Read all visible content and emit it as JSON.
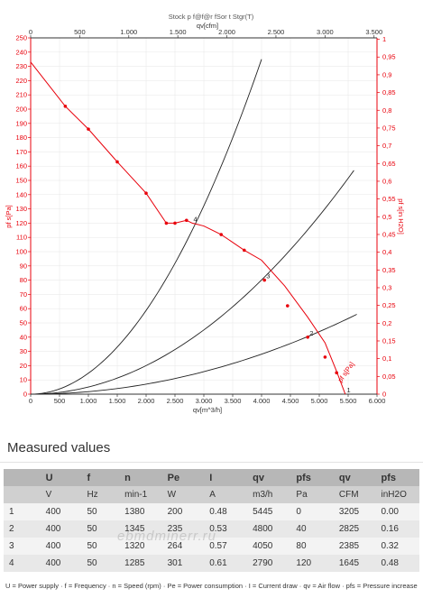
{
  "header_small": "Stock p f@f@r fSor t Stgr(T)",
  "chart_data": {
    "type": "line",
    "top_axis_label": "qv[cfm]",
    "bottom_axis_label": "qv[m^3/h]",
    "left_axis_label": "pf s[Pa]",
    "right_axis_label": "pf s[in H2O]",
    "xlim": [
      0,
      6000
    ],
    "ylim": [
      0,
      250
    ],
    "x_ticks": [
      0,
      500,
      1000,
      1500,
      2000,
      2500,
      3000,
      3500,
      4000,
      4500,
      5000,
      5500,
      6000
    ],
    "x_tick_labels": [
      "0",
      "500",
      "1.000",
      "1.500",
      "2.000",
      "2.500",
      "3.000",
      "3.500",
      "4.000",
      "4.500",
      "5.000",
      "5.500",
      "6.000"
    ],
    "top_ticks": [
      0,
      500,
      1000,
      1500,
      2000,
      2500,
      3000,
      3500
    ],
    "top_tick_labels": [
      "0",
      "500",
      "1.000",
      "1.500",
      "2.000",
      "2.500",
      "3.000",
      "3.500"
    ],
    "y_ticks": [
      0,
      10,
      20,
      30,
      40,
      50,
      60,
      70,
      80,
      90,
      100,
      110,
      120,
      130,
      140,
      150,
      160,
      170,
      180,
      190,
      200,
      210,
      220,
      230,
      240,
      250
    ],
    "right_ticks": [
      0,
      0.05,
      0.1,
      0.15,
      0.2,
      0.25,
      0.3,
      0.35,
      0.4,
      0.45,
      0.5,
      0.55,
      0.6,
      0.65,
      0.7,
      0.75,
      0.8,
      0.85,
      0.9,
      0.95,
      1
    ],
    "right_tick_labels": [
      "0",
      "0,05",
      "0,1",
      "0,15",
      "0,2",
      "0,25",
      "0,3",
      "0,35",
      "0,4",
      "0,45",
      "0,5",
      "0,55",
      "0,6",
      "0,65",
      "0,7",
      "0,75",
      "0,8",
      "0,85",
      "0,9",
      "0,95",
      "1"
    ],
    "fan_curve": {
      "color": "#e8000b",
      "points": [
        [
          0,
          233
        ],
        [
          600,
          202
        ],
        [
          1000,
          186
        ],
        [
          1500,
          163
        ],
        [
          2000,
          141
        ],
        [
          2350,
          120
        ],
        [
          2500,
          120
        ],
        [
          2700,
          122
        ],
        [
          2800,
          120
        ],
        [
          3000,
          118
        ],
        [
          3300,
          112
        ],
        [
          3700,
          101
        ],
        [
          4000,
          94
        ],
        [
          4400,
          76
        ],
        [
          4800,
          54
        ],
        [
          5100,
          36
        ],
        [
          5300,
          16
        ],
        [
          5450,
          0
        ]
      ],
      "markers": [
        [
          600,
          202
        ],
        [
          1000,
          186
        ],
        [
          1500,
          163
        ],
        [
          2000,
          141
        ],
        [
          2350,
          120
        ],
        [
          2500,
          120
        ],
        [
          2700,
          122
        ],
        [
          3300,
          112
        ],
        [
          3700,
          101
        ],
        [
          4050,
          80
        ],
        [
          4450,
          62
        ],
        [
          4800,
          40
        ],
        [
          5100,
          26
        ],
        [
          5300,
          15
        ]
      ]
    },
    "system_curves": [
      {
        "label": "4",
        "end": [
          4000,
          235
        ],
        "label_at": [
          2790,
          120
        ]
      },
      {
        "label": "3",
        "end": [
          5600,
          157
        ],
        "label_at": [
          4050,
          80
        ]
      },
      {
        "label": "2",
        "end": [
          5650,
          56
        ],
        "label_at": [
          4800,
          40
        ]
      },
      {
        "label": "1",
        "end": [
          5450,
          0
        ],
        "label_at": [
          5445,
          0
        ]
      }
    ],
    "curve_tag": "pf s[Pa]"
  },
  "measured": {
    "title": "Measured values",
    "headers": [
      "",
      "U",
      "f",
      "n",
      "Pe",
      "I",
      "qv",
      "pfs",
      "qv",
      "pfs"
    ],
    "units": [
      "",
      "V",
      "Hz",
      "min-1",
      "W",
      "A",
      "m3/h",
      "Pa",
      "CFM",
      "inH2O"
    ],
    "rows": [
      [
        "1",
        "400",
        "50",
        "1380",
        "200",
        "0.48",
        "5445",
        "0",
        "3205",
        "0.00"
      ],
      [
        "2",
        "400",
        "50",
        "1345",
        "235",
        "0.53",
        "4800",
        "40",
        "2825",
        "0.16"
      ],
      [
        "3",
        "400",
        "50",
        "1320",
        "264",
        "0.57",
        "4050",
        "80",
        "2385",
        "0.32"
      ],
      [
        "4",
        "400",
        "50",
        "1285",
        "301",
        "0.61",
        "2790",
        "120",
        "1645",
        "0.48"
      ]
    ]
  },
  "legend_text": "U = Power supply · f = Frequency · n = Speed (rpm) · Pe = Power consumption · I = Current draw · qv = Air flow · pfs = Pressure increase",
  "watermark": "ebmdminerr.ru"
}
